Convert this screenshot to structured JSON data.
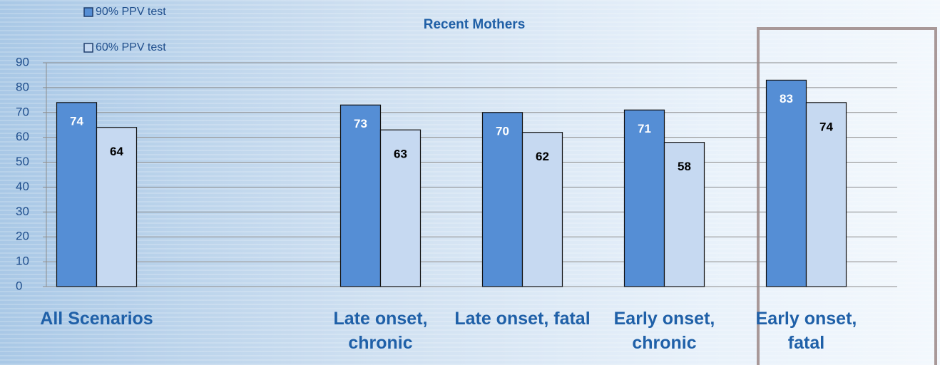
{
  "chart_data": {
    "type": "bar",
    "title": "Recent Mothers",
    "categories": [
      "All Scenarios",
      null,
      "Late onset, chronic",
      "Late onset, fatal",
      "Early onset, chronic",
      "Early onset, fatal"
    ],
    "series": [
      {
        "name": "90% PPV test",
        "color": "#558ed5",
        "values": [
          74,
          null,
          73,
          70,
          71,
          83
        ]
      },
      {
        "name": "60% PPV test",
        "color": "#c6d9f1",
        "values": [
          64,
          null,
          63,
          62,
          58,
          74
        ]
      }
    ],
    "ylim": [
      0,
      90
    ],
    "yticks": [
      0,
      10,
      20,
      30,
      40,
      50,
      60,
      70,
      80,
      90
    ],
    "grid": true
  }
}
